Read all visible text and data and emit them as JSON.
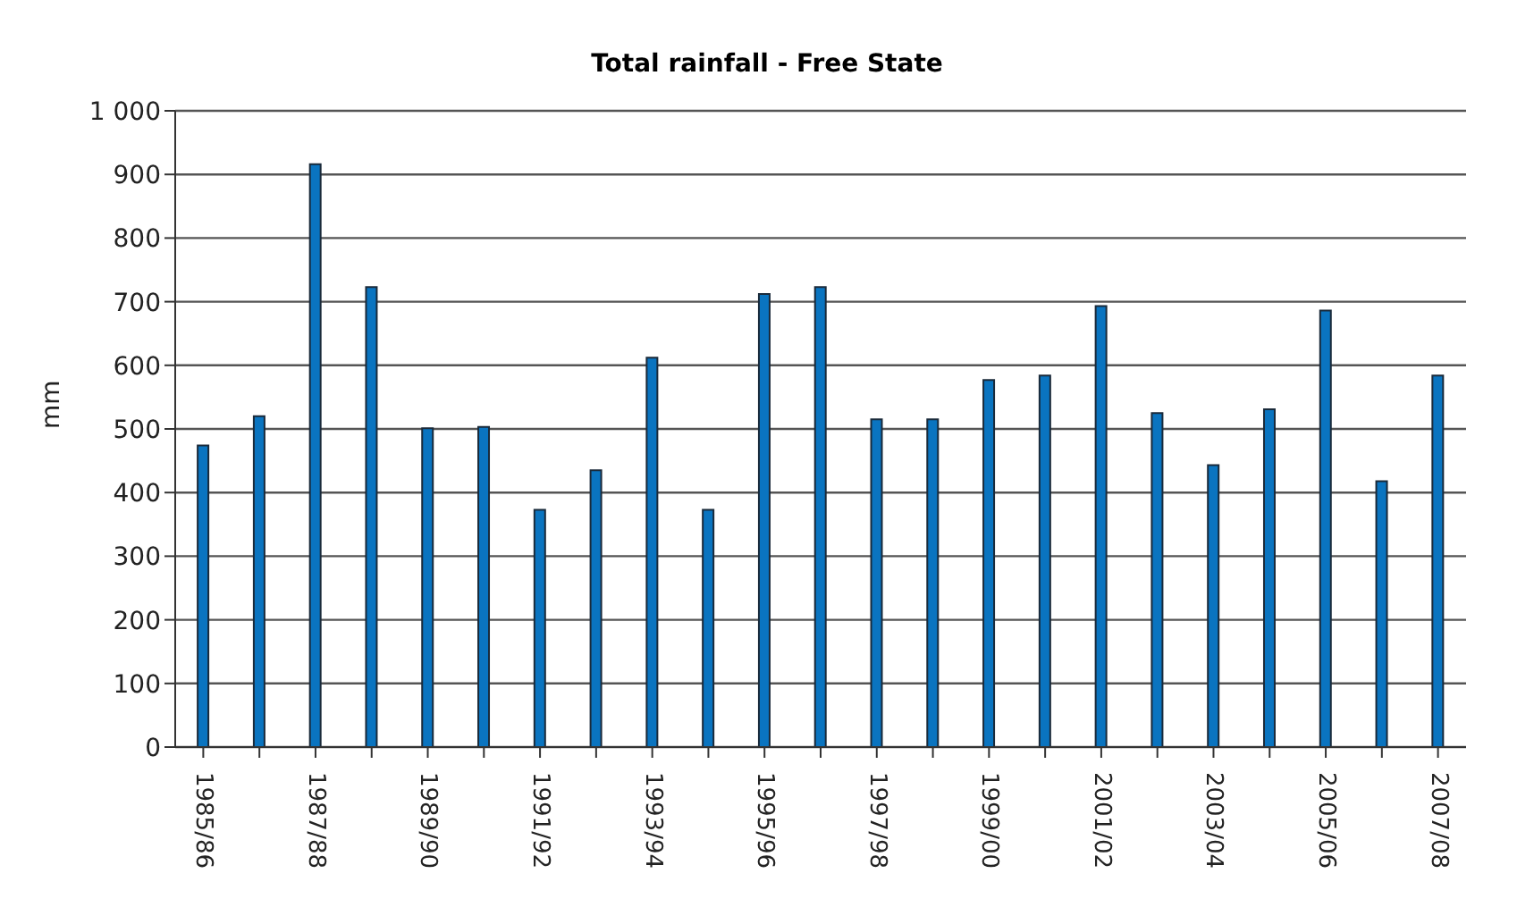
{
  "chart_data": {
    "type": "bar",
    "title": "Total rainfall - Free State",
    "ylabel": "mm",
    "categories": [
      "1985/86",
      null,
      "1987/88",
      null,
      "1989/90",
      null,
      "1991/92",
      null,
      "1993/94",
      null,
      "1995/96",
      null,
      "1997/98",
      null,
      "1999/00",
      null,
      "2001/02",
      null,
      "2003/04",
      null,
      "2005/06",
      null,
      "2007/08"
    ],
    "values": [
      474,
      520,
      916,
      723,
      501,
      503,
      373,
      435,
      612,
      373,
      712,
      723,
      515,
      515,
      577,
      584,
      693,
      525,
      443,
      531,
      686,
      418,
      584
    ],
    "color": "#0a74c0",
    "ylim": [
      0,
      1000
    ],
    "yticks": [
      0,
      100,
      200,
      300,
      400,
      500,
      600,
      700,
      800,
      900,
      {
        "value": 1000,
        "label": "1 000"
      }
    ],
    "grid": "y"
  }
}
